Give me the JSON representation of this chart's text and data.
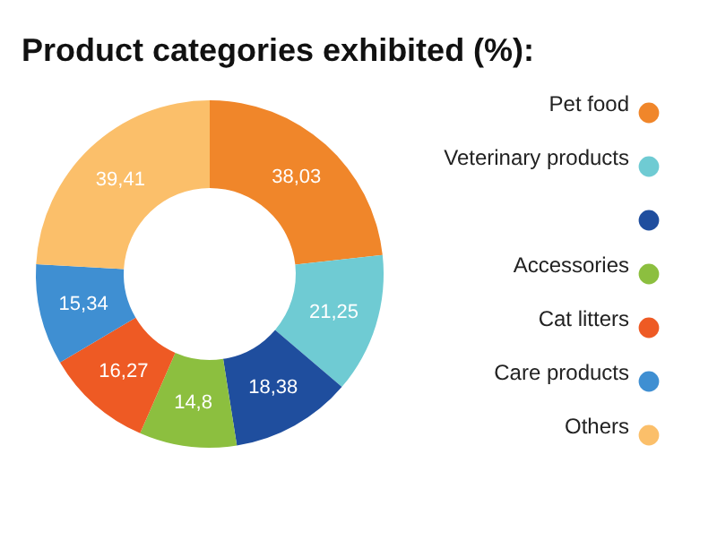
{
  "chart_data": {
    "type": "donut",
    "title": "Product categories exhibited (%):",
    "categories": [
      "Pet food",
      "Veterinary products",
      null,
      "Accessories",
      "Cat litters",
      "Care products",
      "Others"
    ],
    "values": [
      38.03,
      21.25,
      18.38,
      14.8,
      16.27,
      15.34,
      39.41
    ],
    "value_labels": [
      "38,03",
      "21,25",
      "18,38",
      "14,8",
      "16,27",
      "15,34",
      "39,41"
    ],
    "colors": [
      "#f0862a",
      "#6fcbd3",
      "#1f4e9e",
      "#8cbf3f",
      "#ee5a24",
      "#3f8fd2",
      "#fbbf6a"
    ],
    "legend": "right"
  }
}
